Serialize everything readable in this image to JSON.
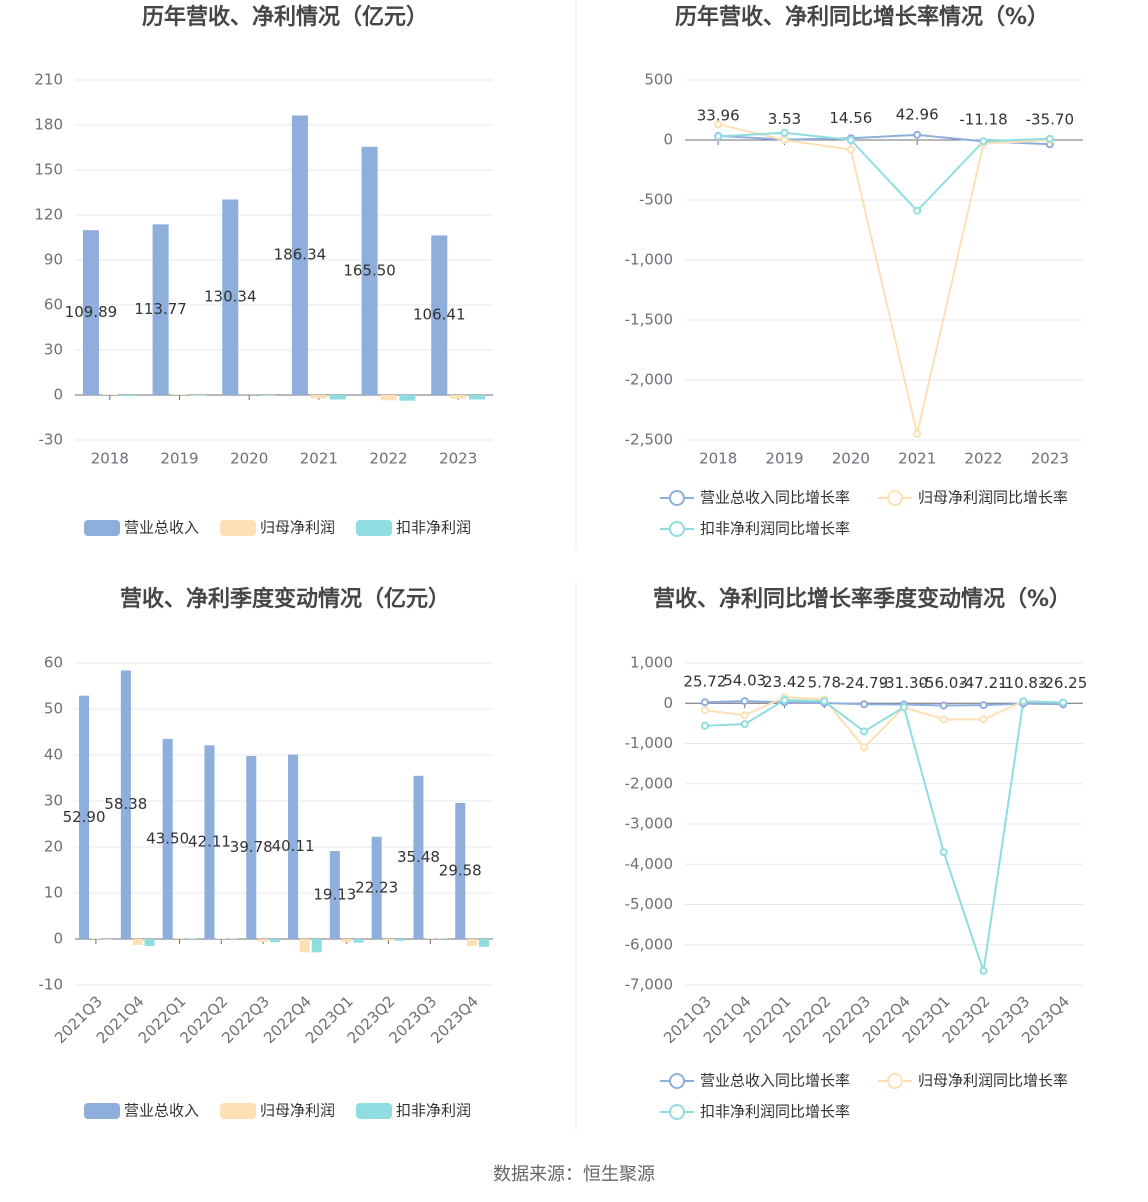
{
  "chart_data": [
    {
      "type": "bar",
      "title": "历年营收、净利情况（亿元）",
      "categories": [
        "2018",
        "2019",
        "2020",
        "2021",
        "2022",
        "2023"
      ],
      "series": [
        {
          "name": "营业总收入",
          "color": "#8eaedb",
          "values": [
            109.89,
            113.77,
            130.34,
            186.34,
            165.5,
            106.41
          ],
          "value_labels": [
            "109.89",
            "113.77",
            "130.34",
            "186.34",
            "165.50",
            "106.41"
          ]
        },
        {
          "name": "归母净利润",
          "color": "#fde0b4",
          "values": [
            0.4,
            0.5,
            0.1,
            -2.3,
            -3.5,
            -2.5
          ]
        },
        {
          "name": "扣非净利润",
          "color": "#8fdde0",
          "values": [
            -0.6,
            -0.3,
            -0.5,
            -3.0,
            -3.8,
            -3.0
          ]
        }
      ],
      "ylim": [
        -30,
        210
      ],
      "yticks": [
        -30,
        0,
        30,
        60,
        90,
        120,
        150,
        180,
        210
      ],
      "grid": true
    },
    {
      "type": "line",
      "title": "历年营收、净利同比增长率情况（%）",
      "categories": [
        "2018",
        "2019",
        "2020",
        "2021",
        "2022",
        "2023"
      ],
      "series": [
        {
          "name": "营业总收入同比增长率",
          "color": "#8eaedb",
          "values": [
            33.96,
            3.53,
            14.56,
            42.96,
            -11.18,
            -35.7
          ],
          "value_labels": [
            "33.96",
            "3.53",
            "14.56",
            "42.96",
            "-11.18",
            "-35.70"
          ]
        },
        {
          "name": "归母净利润同比增长率",
          "color": "#fde0b4",
          "values": [
            130,
            0,
            -80,
            -2450,
            -30,
            0
          ]
        },
        {
          "name": "扣非净利润同比增长率",
          "color": "#8fdde0",
          "values": [
            30,
            60,
            0,
            -590,
            -10,
            10
          ]
        }
      ],
      "ylim": [
        -2500,
        500
      ],
      "yticks": [
        {
          "value": -2500,
          "label": "-2,500"
        },
        {
          "value": -2000,
          "label": "-2,000"
        },
        {
          "value": -1500,
          "label": "-1,500"
        },
        {
          "value": -1000,
          "label": "-1,000"
        },
        -500,
        0,
        500
      ],
      "grid": true
    },
    {
      "type": "bar",
      "title": "营收、净利季度变动情况（亿元）",
      "categories": [
        "2021Q3",
        "2021Q4",
        "2022Q1",
        "2022Q2",
        "2022Q3",
        "2022Q4",
        "2023Q1",
        "2023Q2",
        "2023Q3",
        "2023Q4"
      ],
      "series": [
        {
          "name": "营业总收入",
          "color": "#8eaedb",
          "values": [
            52.9,
            58.38,
            43.5,
            42.11,
            39.78,
            40.11,
            19.13,
            22.23,
            35.48,
            29.58
          ],
          "value_labels": [
            "52.90",
            "58.38",
            "43.50",
            "42.11",
            "39.78",
            "40.11",
            "19.13",
            "22.23",
            "35.48",
            "29.58"
          ]
        },
        {
          "name": "归母净利润",
          "color": "#fde0b4",
          "values": [
            0.1,
            -1.3,
            0.2,
            0.1,
            -0.6,
            -2.9,
            -0.7,
            -0.3,
            0.2,
            -1.5
          ]
        },
        {
          "name": "扣非净利润",
          "color": "#8fdde0",
          "values": [
            -0.1,
            -1.5,
            0.1,
            0.1,
            -0.7,
            -2.9,
            -0.8,
            -0.4,
            0.1,
            -1.7
          ]
        }
      ],
      "ylim": [
        -10,
        60
      ],
      "yticks": [
        -10,
        0,
        10,
        20,
        30,
        40,
        50,
        60
      ],
      "grid": true
    },
    {
      "type": "line",
      "title": "营收、净利同比增长率季度变动情况（%）",
      "categories": [
        "2021Q3",
        "2021Q4",
        "2022Q1",
        "2022Q2",
        "2022Q3",
        "2022Q4",
        "2023Q1",
        "2023Q2",
        "2023Q3",
        "2023Q4"
      ],
      "series": [
        {
          "name": "营业总收入同比增长率",
          "color": "#8eaedb",
          "values": [
            25.72,
            54.03,
            23.42,
            5.78,
            -24.79,
            -31.3,
            -56.03,
            -47.21,
            -10.83,
            -26.25
          ],
          "value_labels": [
            "25.72",
            "54.03",
            "23.42",
            "5.78",
            "-24.79",
            "-31.30",
            "-56.03",
            "-47.21",
            "-10.83",
            "-26.25"
          ]
        },
        {
          "name": "归母净利润同比增长率",
          "color": "#fde0b4",
          "values": [
            -170,
            -300,
            150,
            100,
            -1100,
            -100,
            -400,
            -400,
            50,
            20
          ]
        },
        {
          "name": "扣非净利润同比增长率",
          "color": "#8fdde0",
          "values": [
            -560,
            -520,
            80,
            50,
            -700,
            -100,
            -3700,
            -6650,
            50,
            20
          ]
        }
      ],
      "ylim": [
        -7000,
        1000
      ],
      "yticks": [
        {
          "value": -7000,
          "label": "-7,000"
        },
        {
          "value": -6000,
          "label": "-6,000"
        },
        {
          "value": -5000,
          "label": "-5,000"
        },
        {
          "value": -4000,
          "label": "-4,000"
        },
        {
          "value": -3000,
          "label": "-3,000"
        },
        {
          "value": -2000,
          "label": "-2,000"
        },
        {
          "value": -1000,
          "label": "-1,000"
        },
        0,
        {
          "value": 1000,
          "label": "1,000"
        }
      ],
      "grid": true
    }
  ],
  "footer": "数据来源：恒生聚源"
}
